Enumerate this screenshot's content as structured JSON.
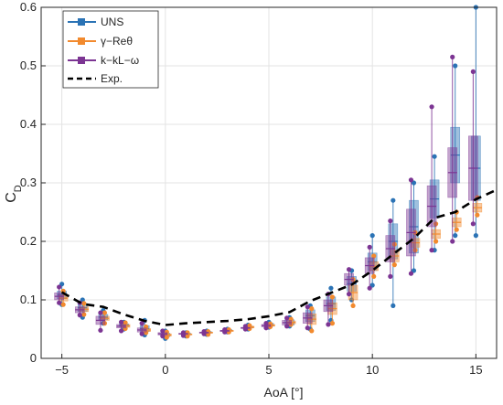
{
  "chart_data": {
    "type": "box",
    "xlabel": "AoA [°]",
    "ylabel_main": "C",
    "ylabel_sub": "D",
    "xlim": [
      -6,
      16
    ],
    "ylim": [
      0,
      0.6
    ],
    "xticks": [
      -5,
      0,
      5,
      10,
      15
    ],
    "yticks": [
      0,
      0.1,
      0.2,
      0.3,
      0.4,
      0.5,
      0.6
    ],
    "xtick_labels": [
      "−5",
      "0",
      "5",
      "10",
      "15"
    ],
    "ytick_labels": [
      "0",
      "0.1",
      "0.2",
      "0.3",
      "0.4",
      "0.5",
      "0.6"
    ],
    "grid": true,
    "legend_position": "top-left",
    "legend": [
      {
        "key": "uns",
        "label": "UNS",
        "color": "#2b73b5",
        "style": "box"
      },
      {
        "key": "gam",
        "label": "γ−Reθ",
        "color": "#f28a2e",
        "style": "box"
      },
      {
        "key": "kkl",
        "label": "k−kL−ω",
        "color": "#7c3593",
        "style": "box"
      },
      {
        "key": "exp",
        "label": "Exp.",
        "color": "#000000",
        "style": "dashed"
      }
    ],
    "aoa": [
      -5,
      -4,
      -3,
      -2,
      -1,
      0,
      1,
      2,
      3,
      4,
      5,
      6,
      7,
      8,
      9,
      10,
      11,
      12,
      13,
      14,
      15
    ],
    "series": [
      {
        "name": "UNS",
        "color": "#2b73b5",
        "box": [
          [
            0.092,
            0.102,
            0.115,
            0.127
          ],
          [
            0.07,
            0.08,
            0.093,
            0.1
          ],
          [
            0.06,
            0.066,
            0.075,
            0.082
          ],
          [
            0.05,
            0.054,
            0.059,
            0.062
          ],
          [
            0.04,
            0.046,
            0.056,
            0.065
          ],
          [
            0.034,
            0.037,
            0.043,
            0.047
          ],
          [
            0.038,
            0.04,
            0.043,
            0.044
          ],
          [
            0.041,
            0.043,
            0.046,
            0.047
          ],
          [
            0.045,
            0.047,
            0.049,
            0.05
          ],
          [
            0.05,
            0.052,
            0.055,
            0.057
          ],
          [
            0.053,
            0.055,
            0.06,
            0.062
          ],
          [
            0.055,
            0.057,
            0.066,
            0.07
          ],
          [
            0.05,
            0.063,
            0.083,
            0.09
          ],
          [
            0.065,
            0.082,
            0.105,
            0.12
          ],
          [
            0.1,
            0.115,
            0.14,
            0.15
          ],
          [
            0.125,
            0.15,
            0.18,
            0.21
          ],
          [
            0.09,
            0.17,
            0.23,
            0.27
          ],
          [
            0.15,
            0.18,
            0.27,
            0.3
          ],
          [
            0.185,
            0.24,
            0.305,
            0.345
          ],
          [
            0.21,
            0.3,
            0.395,
            0.5
          ],
          [
            0.21,
            0.27,
            0.38,
            0.6
          ]
        ]
      },
      {
        "name": "γ−Reθ",
        "color": "#f28a2e",
        "box": [
          [
            0.092,
            0.098,
            0.108,
            0.115
          ],
          [
            0.075,
            0.08,
            0.088,
            0.094
          ],
          [
            0.06,
            0.065,
            0.072,
            0.078
          ],
          [
            0.051,
            0.053,
            0.058,
            0.061
          ],
          [
            0.044,
            0.046,
            0.051,
            0.054
          ],
          [
            0.036,
            0.038,
            0.042,
            0.045
          ],
          [
            0.038,
            0.04,
            0.042,
            0.044
          ],
          [
            0.041,
            0.043,
            0.045,
            0.046
          ],
          [
            0.045,
            0.046,
            0.048,
            0.049
          ],
          [
            0.051,
            0.052,
            0.055,
            0.056
          ],
          [
            0.054,
            0.055,
            0.058,
            0.059
          ],
          [
            0.058,
            0.059,
            0.064,
            0.067
          ],
          [
            0.047,
            0.058,
            0.076,
            0.085
          ],
          [
            0.06,
            0.075,
            0.095,
            0.105
          ],
          [
            0.09,
            0.1,
            0.125,
            0.135
          ],
          [
            0.14,
            0.15,
            0.165,
            0.175
          ],
          [
            0.16,
            0.165,
            0.185,
            0.195
          ],
          [
            0.185,
            0.19,
            0.205,
            0.215
          ],
          [
            0.2,
            0.205,
            0.22,
            0.23
          ],
          [
            0.22,
            0.225,
            0.24,
            0.25
          ],
          [
            0.245,
            0.25,
            0.265,
            0.275
          ]
        ]
      },
      {
        "name": "k−kL−ω",
        "color": "#7c3593",
        "box": [
          [
            0.095,
            0.1,
            0.112,
            0.122
          ],
          [
            0.074,
            0.078,
            0.088,
            0.095
          ],
          [
            0.048,
            0.058,
            0.072,
            0.078
          ],
          [
            0.047,
            0.052,
            0.058,
            0.062
          ],
          [
            0.042,
            0.045,
            0.052,
            0.06
          ],
          [
            0.038,
            0.04,
            0.044,
            0.047
          ],
          [
            0.039,
            0.041,
            0.043,
            0.044
          ],
          [
            0.042,
            0.043,
            0.045,
            0.046
          ],
          [
            0.045,
            0.046,
            0.048,
            0.049
          ],
          [
            0.05,
            0.051,
            0.053,
            0.055
          ],
          [
            0.052,
            0.054,
            0.058,
            0.06
          ],
          [
            0.055,
            0.057,
            0.065,
            0.069
          ],
          [
            0.052,
            0.06,
            0.078,
            0.088
          ],
          [
            0.058,
            0.08,
            0.1,
            0.11
          ],
          [
            0.11,
            0.125,
            0.145,
            0.152
          ],
          [
            0.12,
            0.145,
            0.172,
            0.19
          ],
          [
            0.14,
            0.165,
            0.21,
            0.235
          ],
          [
            0.145,
            0.175,
            0.255,
            0.305
          ],
          [
            0.185,
            0.225,
            0.295,
            0.43
          ],
          [
            0.2,
            0.275,
            0.36,
            0.515
          ],
          [
            0.23,
            0.27,
            0.38,
            0.49
          ]
        ]
      }
    ],
    "experiment": {
      "name": "Exp.",
      "color": "#000000",
      "x": [
        -5,
        -4,
        -3,
        -2,
        -1,
        0,
        1,
        2,
        3,
        4,
        5,
        6,
        7,
        8,
        9,
        10,
        11,
        12,
        13,
        14,
        15,
        16
      ],
      "y": [
        0.113,
        0.093,
        0.088,
        0.075,
        0.064,
        0.057,
        0.06,
        0.062,
        0.064,
        0.067,
        0.072,
        0.079,
        0.098,
        0.112,
        0.126,
        0.15,
        0.178,
        0.205,
        0.24,
        0.25,
        0.272,
        0.288
      ]
    }
  }
}
